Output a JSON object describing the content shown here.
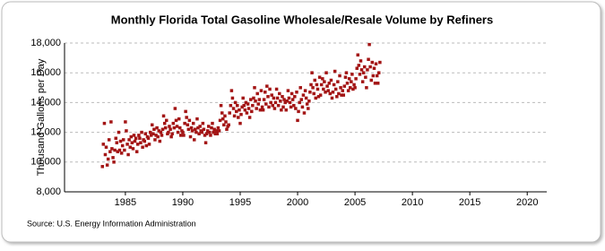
{
  "chart_data": {
    "type": "scatter",
    "title": "Monthly Florida Total Gasoline Wholesale/Resale Volume by Refiners",
    "y_label": "Thousand Gallons per Day",
    "source": "Source: U.S. Energy Information Administration",
    "color": "#a31515",
    "grid": true,
    "xlim": [
      1979.7,
      2021.7
    ],
    "xticks": [
      1985,
      1990,
      1995,
      2000,
      2005,
      2010,
      2015,
      2020
    ],
    "ylim": [
      8000,
      18000
    ],
    "yticks": [
      {
        "value": 8000,
        "label": "8,000"
      },
      {
        "value": 10000,
        "label": "10,000"
      },
      {
        "value": 12000,
        "label": "12,000"
      },
      {
        "value": 14000,
        "label": "14,000"
      },
      {
        "value": 16000,
        "label": "16,000"
      },
      {
        "value": 18000,
        "label": "18,000"
      }
    ],
    "x": [
      1983.0,
      1983.08,
      1983.17,
      1983.25,
      1983.33,
      1983.42,
      1983.5,
      1983.58,
      1983.67,
      1983.75,
      1983.83,
      1983.92,
      1984.0,
      1984.08,
      1984.17,
      1984.25,
      1984.33,
      1984.42,
      1984.5,
      1984.58,
      1984.67,
      1984.75,
      1984.83,
      1984.92,
      1985.0,
      1985.08,
      1985.17,
      1985.25,
      1985.33,
      1985.42,
      1985.5,
      1985.58,
      1985.67,
      1985.75,
      1985.83,
      1985.92,
      1986.0,
      1986.08,
      1986.17,
      1986.25,
      1986.33,
      1986.42,
      1986.5,
      1986.58,
      1986.67,
      1986.75,
      1986.83,
      1986.92,
      1987.0,
      1987.08,
      1987.17,
      1987.25,
      1987.33,
      1987.42,
      1987.5,
      1987.58,
      1987.67,
      1987.75,
      1987.83,
      1987.92,
      1988.0,
      1988.08,
      1988.17,
      1988.25,
      1988.33,
      1988.42,
      1988.5,
      1988.58,
      1988.67,
      1988.75,
      1988.83,
      1988.92,
      1989.0,
      1989.08,
      1989.17,
      1989.25,
      1989.33,
      1989.42,
      1989.5,
      1989.58,
      1989.67,
      1989.75,
      1989.83,
      1989.92,
      1990.0,
      1990.08,
      1990.17,
      1990.25,
      1990.33,
      1990.42,
      1990.5,
      1990.58,
      1990.67,
      1990.75,
      1990.83,
      1990.92,
      1991.0,
      1991.08,
      1991.17,
      1991.25,
      1991.33,
      1991.42,
      1991.5,
      1991.58,
      1991.67,
      1991.75,
      1991.83,
      1991.92,
      1992.0,
      1992.08,
      1992.17,
      1992.25,
      1992.33,
      1992.42,
      1992.5,
      1992.58,
      1992.67,
      1992.75,
      1992.83,
      1992.92,
      1993.0,
      1993.08,
      1993.17,
      1993.25,
      1993.33,
      1993.42,
      1993.5,
      1993.58,
      1993.67,
      1993.75,
      1993.83,
      1993.92,
      1994.0,
      1994.08,
      1994.17,
      1994.25,
      1994.33,
      1994.42,
      1994.5,
      1994.58,
      1994.67,
      1994.75,
      1994.83,
      1994.92,
      1995.0,
      1995.08,
      1995.17,
      1995.25,
      1995.33,
      1995.42,
      1995.5,
      1995.58,
      1995.67,
      1995.75,
      1995.83,
      1995.92,
      1996.0,
      1996.08,
      1996.17,
      1996.25,
      1996.33,
      1996.42,
      1996.5,
      1996.58,
      1996.67,
      1996.75,
      1996.83,
      1996.92,
      1997.0,
      1997.08,
      1997.17,
      1997.25,
      1997.33,
      1997.42,
      1997.5,
      1997.58,
      1997.67,
      1997.75,
      1997.83,
      1997.92,
      1998.0,
      1998.08,
      1998.17,
      1998.25,
      1998.33,
      1998.42,
      1998.5,
      1998.58,
      1998.67,
      1998.75,
      1998.83,
      1998.92,
      1999.0,
      1999.08,
      1999.17,
      1999.25,
      1999.33,
      1999.42,
      1999.5,
      1999.58,
      1999.67,
      1999.75,
      1999.83,
      1999.92,
      2000.0,
      2000.08,
      2000.17,
      2000.25,
      2000.33,
      2000.42,
      2000.5,
      2000.58,
      2000.67,
      2000.75,
      2000.83,
      2000.92,
      2001.0,
      2001.08,
      2001.17,
      2001.25,
      2001.33,
      2001.42,
      2001.5,
      2001.58,
      2001.67,
      2001.75,
      2001.83,
      2001.92,
      2002.0,
      2002.08,
      2002.17,
      2002.25,
      2002.33,
      2002.42,
      2002.5,
      2002.58,
      2002.67,
      2002.75,
      2002.83,
      2002.92,
      2003.0,
      2003.08,
      2003.17,
      2003.25,
      2003.33,
      2003.42,
      2003.5,
      2003.58,
      2003.67,
      2003.75,
      2003.83,
      2003.92,
      2004.0,
      2004.08,
      2004.17,
      2004.25,
      2004.33,
      2004.42,
      2004.5,
      2004.58,
      2004.67,
      2004.75,
      2004.83,
      2004.92,
      2005.0,
      2005.08,
      2005.17,
      2005.25,
      2005.33,
      2005.42,
      2005.5,
      2005.58,
      2005.67,
      2005.75,
      2005.83,
      2005.92,
      2006.0,
      2006.08,
      2006.17,
      2006.25,
      2006.33,
      2006.42,
      2006.5,
      2006.58,
      2006.67,
      2006.75,
      2006.83,
      2006.92,
      2007.0,
      2007.08,
      2007.17
    ],
    "values": [
      9700,
      11200,
      12600,
      10500,
      11000,
      9800,
      10200,
      11500,
      10700,
      12700,
      10900,
      10300,
      10000,
      10800,
      11600,
      11300,
      10700,
      12000,
      10800,
      11400,
      10600,
      11100,
      11500,
      10800,
      12700,
      12100,
      11200,
      10500,
      11500,
      11000,
      11700,
      11300,
      10900,
      11800,
      11400,
      11600,
      10700,
      11200,
      11800,
      11600,
      11300,
      12000,
      11000,
      11500,
      11400,
      11900,
      11100,
      11700,
      11600,
      11200,
      12000,
      11800,
      12500,
      11900,
      12200,
      11500,
      11800,
      12300,
      11700,
      12100,
      11400,
      12000,
      11800,
      12200,
      13100,
      12600,
      12300,
      12800,
      11900,
      12000,
      12400,
      12200,
      11700,
      11900,
      12600,
      12300,
      13600,
      12800,
      12400,
      12000,
      12900,
      12300,
      11800,
      12100,
      12000,
      11800,
      12600,
      13400,
      13000,
      12500,
      12200,
      12800,
      11700,
      12300,
      12100,
      12600,
      11500,
      12200,
      12000,
      12900,
      12300,
      11900,
      12400,
      12100,
      12000,
      12600,
      12200,
      11800,
      11300,
      11900,
      12100,
      12400,
      12000,
      11800,
      12300,
      12600,
      12000,
      12200,
      11900,
      12100,
      11900,
      12300,
      12100,
      12800,
      13800,
      13300,
      12900,
      12500,
      13100,
      12700,
      12200,
      12400,
      12500,
      13300,
      13800,
      14800,
      14300,
      13600,
      13100,
      14000,
      13400,
      13800,
      13000,
      13500,
      12600,
      13200,
      13700,
      14300,
      13800,
      13500,
      14000,
      13300,
      13900,
      13600,
      13000,
      14200,
      13400,
      13800,
      14300,
      15000,
      14100,
      13600,
      14600,
      13900,
      14200,
      13500,
      14800,
      13700,
      13500,
      14200,
      14700,
      13900,
      15100,
      14400,
      13700,
      14900,
      14000,
      14500,
      13800,
      14300,
      13600,
      14000,
      14900,
      14300,
      13800,
      14600,
      14100,
      13500,
      14400,
      13700,
      14200,
      14000,
      13500,
      14100,
      14800,
      14300,
      14000,
      13700,
      14600,
      14200,
      13800,
      14400,
      13600,
      14700,
      12800,
      13400,
      14000,
      15000,
      14200,
      13700,
      14500,
      13300,
      14800,
      14300,
      13900,
      13600,
      14100,
      14700,
      15200,
      16000,
      15000,
      14600,
      15500,
      14300,
      15200,
      14900,
      14400,
      15700,
      14500,
      15200,
      15600,
      14900,
      15400,
      14700,
      16000,
      15100,
      14800,
      15300,
      14600,
      15500,
      14300,
      14700,
      15200,
      16100,
      14900,
      14400,
      15400,
      14600,
      15800,
      15000,
      14500,
      14800,
      14500,
      15100,
      15700,
      16000,
      15300,
      14800,
      15600,
      15000,
      15400,
      15900,
      14900,
      15200,
      15000,
      15600,
      16300,
      17200,
      16500,
      15900,
      16800,
      16200,
      15400,
      16000,
      16400,
      15700,
      15000,
      16200,
      16900,
      17900,
      16400,
      15500,
      16700,
      15800,
      16300,
      15300,
      16600,
      15800,
      15300,
      16000,
      16700
    ]
  }
}
